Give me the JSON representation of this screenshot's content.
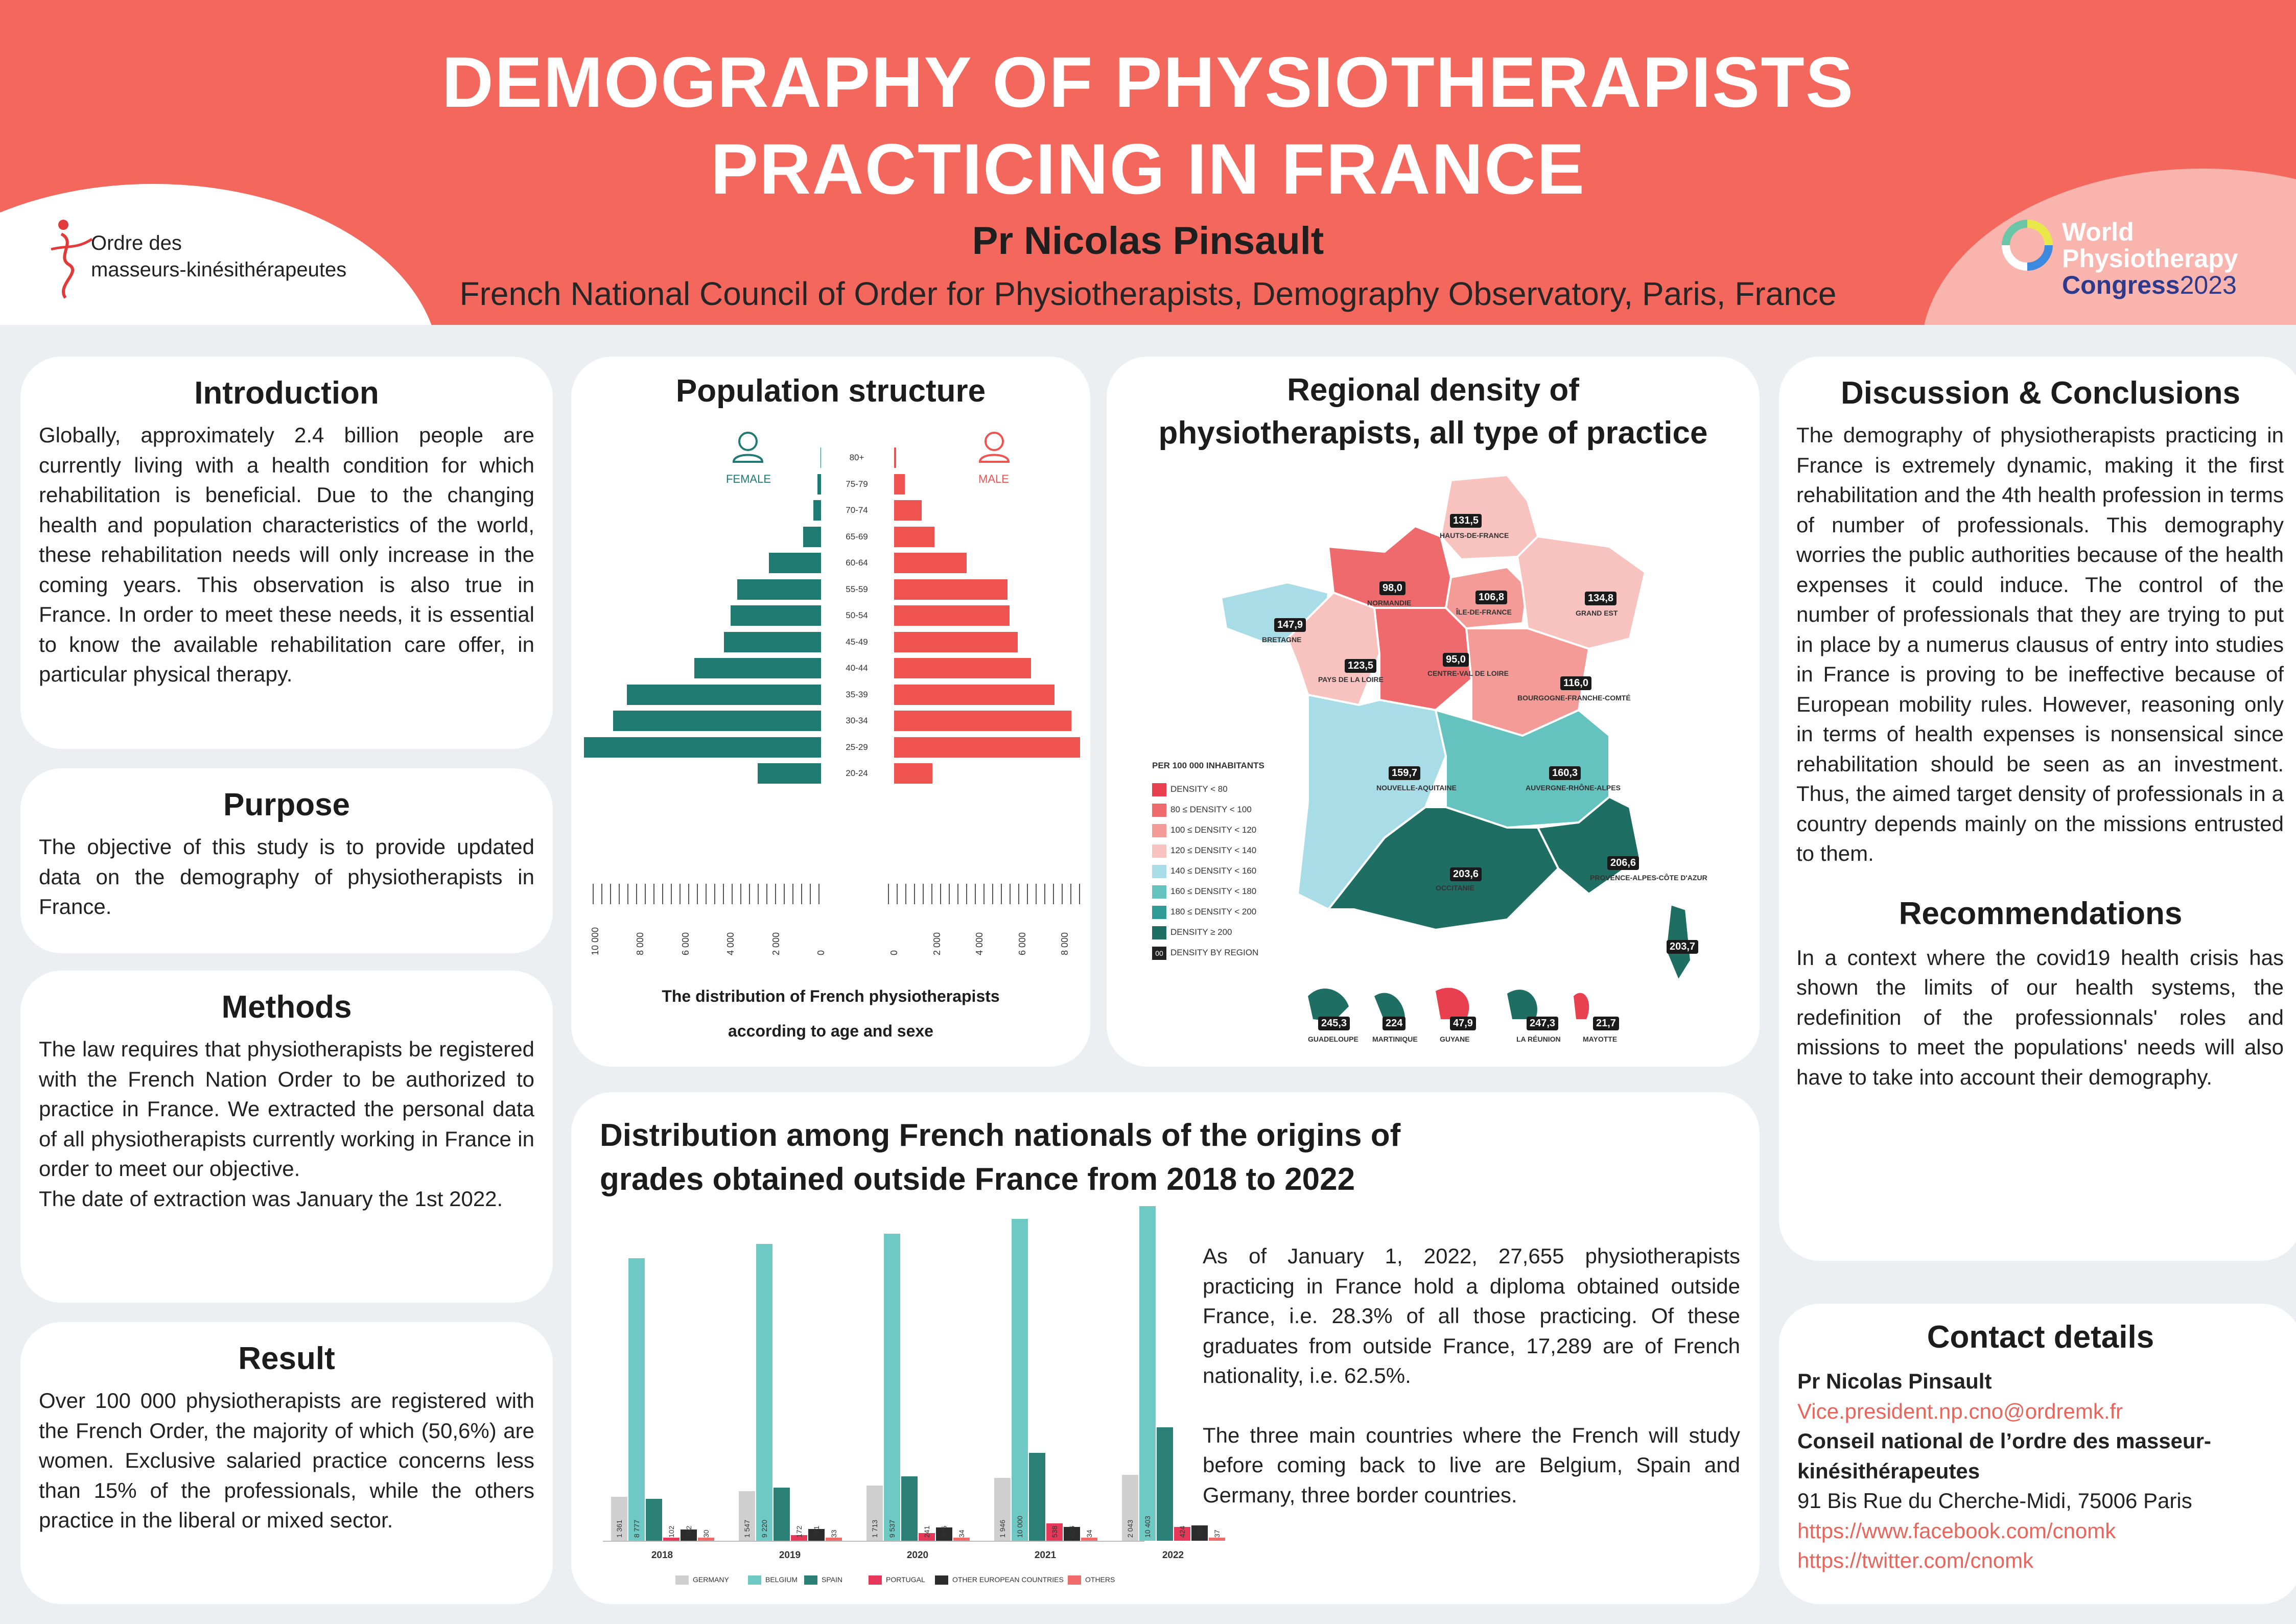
{
  "header": {
    "title_line1": "DEMOGRAPHY OF PHYSIOTHERAPISTS",
    "title_line2": "PRACTICING IN FRANCE",
    "author": "Pr Nicolas Pinsault",
    "affiliation": "French National Council of Order for Physiotherapists, Demography Observatory, Paris, France",
    "left_logo_line1": "Ordre des",
    "left_logo_line2": "masseurs-kinésithérapeutes",
    "right_logo_line1": "World",
    "right_logo_line2": "Physiotherapy",
    "right_logo_line3": "Congress",
    "right_logo_year": "2023"
  },
  "introduction": {
    "heading": "Introduction",
    "text": "Globally, approximately 2.4 billion people are currently living with a health condition for which rehabilitation is beneficial. Due to the changing health and population characteristics of the world, these rehabilitation needs will only increase in the coming years. This observation is also true in France. In order to meet these needs, it is essential to know the available rehabilitation care offer, in particular physical therapy."
  },
  "purpose": {
    "heading": "Purpose",
    "text": "The objective of this study is to provide updated data on the demography of physiotherapists in France."
  },
  "methods": {
    "heading": "Methods",
    "text1": "The law requires that physiotherapists be registered with the French Nation Order to be authorized to practice in France. We extracted the personal data of all physiotherapists currently working in France in order to meet our objective.",
    "text2": "The date of extraction was January the 1st 2022."
  },
  "result": {
    "heading": "Result",
    "text": "Over 100 000 physiotherapists are registered with the French Order, the majority of which (50,6%) are women. Exclusive salaried practice concerns less than 15% of the professionals, while the others practice in the liberal or mixed sector."
  },
  "population": {
    "heading": "Population structure",
    "female_label": "FEMALE",
    "male_label": "MALE",
    "caption_line1": "The distribution of French physiotherapists",
    "caption_line2": "according to age and sexe"
  },
  "regional": {
    "heading_line1": "Regional density of",
    "heading_line2": "physiotherapists, all type of practice",
    "legend_title": "PER 100 000 INHABITANTS",
    "legend": [
      {
        "label": "DENSITY < 80",
        "color": "#e8404f"
      },
      {
        "label": "80 ≤ DENSITY < 100",
        "color": "#ee6a6c"
      },
      {
        "label": "100 ≤ DENSITY < 120",
        "color": "#f49b97"
      },
      {
        "label": "120 ≤ DENSITY < 140",
        "color": "#f8c2bf"
      },
      {
        "label": "140 ≤ DENSITY < 160",
        "color": "#a8dde8"
      },
      {
        "label": "160 ≤ DENSITY < 180",
        "color": "#64c3be"
      },
      {
        "label": "180 ≤ DENSITY < 200",
        "color": "#2f9c95"
      },
      {
        "label": "DENSITY ≥ 200",
        "color": "#1f6e64"
      }
    ],
    "legend_region": "DENSITY BY REGION",
    "legend_region_icon": "00",
    "regions": [
      {
        "name": "HAUTS-DE-FRANCE",
        "value": "131,5"
      },
      {
        "name": "NORMANDIE",
        "value": "98,0"
      },
      {
        "name": "ÎLE-DE-FRANCE",
        "value": "106,8"
      },
      {
        "name": "GRAND EST",
        "value": "134,8"
      },
      {
        "name": "BRETAGNE",
        "value": "147,9"
      },
      {
        "name": "PAYS DE LA LOIRE",
        "value": "123,5"
      },
      {
        "name": "CENTRE-VAL DE LOIRE",
        "value": "95,0"
      },
      {
        "name": "BOURGOGNE-FRANCHE-COMTÉ",
        "value": "116,0"
      },
      {
        "name": "NOUVELLE-AQUITAINE",
        "value": "159,7"
      },
      {
        "name": "AUVERGNE-RHÔNE-ALPES",
        "value": "160,3"
      },
      {
        "name": "OCCITANIE",
        "value": "203,6"
      },
      {
        "name": "PROVENCE-ALPES-CÔTE D'AZUR",
        "value": "206,6"
      },
      {
        "name": "",
        "value": "203,7"
      }
    ],
    "overseas": [
      {
        "name": "GUADELOUPE",
        "value": "245,3"
      },
      {
        "name": "MARTINIQUE",
        "value": "224"
      },
      {
        "name": "GUYANE",
        "value": "47,9"
      },
      {
        "name": "LA RÉUNION",
        "value": "247,3"
      },
      {
        "name": "MAYOTTE",
        "value": "21,7"
      }
    ]
  },
  "distribution": {
    "heading_line1": "Distribution among French nationals of the origins of",
    "heading_line2": "grades obtained outside France from 2018 to 2022",
    "text1": "As of January 1, 2022, 27,655 physiotherapists practicing in France hold a diploma obtained outside France, i.e. 28.3% of all those practicing. Of these graduates from outside France, 17,289 are of French nationality, i.e. 62.5%.",
    "text2": "The three main countries where the French will study before coming back to live are Belgium, Spain and Germany, three border countries."
  },
  "discussion": {
    "heading": "Discussion & Conclusions",
    "text": "The demography of physiotherapists practicing in France is extremely dynamic, making it the first rehabilitation and the 4th health profession in terms of number of professionals. This demography worries the public authorities because of the health expenses it could induce. The control of the number of professionals that they are trying to put in place by a numerus clausus of entry into studies in France is proving to be ineffective because of European mobility rules. However, reasoning only in terms of health expenses is nonsensical since rehabilitation should be seen as an investment. Thus, the aimed target density of professionals in a country depends mainly on the missions entrusted to them."
  },
  "recommendations": {
    "heading": "Recommendations",
    "text": "In a context where the covid19 health crisis has shown the limits of our health systems, the redefinition of the professionnals' roles and missions to meet the populations' needs will also have to take into account their demography."
  },
  "contact": {
    "heading": "Contact details",
    "name": "Pr Nicolas Pinsault",
    "email": "Vice.president.np.cno@ordremk.fr",
    "org": "Conseil national de l’ordre des masseur-kinésithérapeutes",
    "address": "91 Bis Rue du Cherche-Midi, 75006 Paris",
    "facebook": "https://www.facebook.com/cnomk",
    "twitter": "https://twitter.com/cnomk"
  },
  "chart_data": [
    {
      "type": "bar",
      "orientation": "horizontal-pyramid",
      "categories": [
        "80+",
        "75-79",
        "70-74",
        "65-69",
        "60-64",
        "55-59",
        "50-54",
        "45-49",
        "40-44",
        "35-39",
        "30-34",
        "25-29",
        "20-24"
      ],
      "series": [
        {
          "name": "FEMALE",
          "color": "#1f7a72",
          "values": [
            30,
            150,
            350,
            800,
            2300,
            3700,
            4000,
            4300,
            5600,
            8600,
            9200,
            10500,
            2800
          ]
        },
        {
          "name": "MALE",
          "color": "#ef5350",
          "values": [
            100,
            500,
            1300,
            1900,
            3400,
            5300,
            5400,
            5800,
            6400,
            7500,
            8300,
            8700,
            1800
          ]
        }
      ],
      "xticks_left": [
        "10 000",
        "8 000",
        "6 000",
        "4 000",
        "2 000",
        "0"
      ],
      "xticks_right": [
        "0",
        "2 000",
        "4 000",
        "6 000",
        "8 000"
      ],
      "xlim": [
        0,
        10000
      ]
    },
    {
      "type": "bar",
      "categories": [
        "2018",
        "2019",
        "2020",
        "2021",
        "2022"
      ],
      "series": [
        {
          "name": "GERMANY",
          "color": "#cfcfcf",
          "values": [
            1361,
            1547,
            1713,
            1946,
            2043
          ]
        },
        {
          "name": "BELGIUM",
          "color": "#6ec9c5",
          "values": [
            8777,
            9220,
            9537,
            10000,
            10403
          ]
        },
        {
          "name": "SPAIN",
          "color": "#2a7f76",
          "values": [
            1305,
            1657,
            2000,
            2727,
            3517
          ]
        },
        {
          "name": "PORTUGAL",
          "color": "#e8385a",
          "values": [
            102,
            172,
            241,
            538,
            424
          ]
        },
        {
          "name": "OTHER EUROPEAN COUNTRIES",
          "color": "#2c2c2c",
          "values": [
            352,
            371,
            405,
            436,
            478
          ]
        },
        {
          "name": "OTHERS",
          "color": "#f26b6b",
          "values": [
            30,
            33,
            34,
            34,
            37
          ]
        }
      ],
      "labels": [
        [
          "1 361",
          "8 777",
          "",
          "102",
          "352",
          "30"
        ],
        [
          "1 547",
          "9 220",
          "",
          "172",
          "371",
          "33"
        ],
        [
          "1 713",
          "9 537",
          "",
          "241",
          "405",
          "34"
        ],
        [
          "1 946",
          "10 000",
          "",
          "538",
          "436",
          "34"
        ],
        [
          "2 043",
          "10 403",
          "",
          "424",
          "478",
          "37"
        ]
      ]
    }
  ]
}
